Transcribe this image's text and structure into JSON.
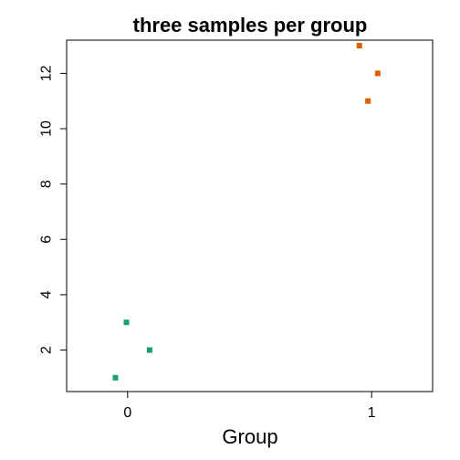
{
  "chart_data": {
    "type": "scatter",
    "title": "three samples per group",
    "xlabel": "Group",
    "ylabel": "",
    "xlim": [
      -0.25,
      1.25
    ],
    "ylim": [
      0.5,
      13.2
    ],
    "x_ticks": [
      0,
      1
    ],
    "x_tick_labels": [
      "0",
      "1"
    ],
    "y_ticks": [
      2,
      4,
      6,
      8,
      10,
      12
    ],
    "y_tick_labels": [
      "2",
      "4",
      "6",
      "8",
      "10",
      "12"
    ],
    "grid": false,
    "legend": "none",
    "series": [
      {
        "color": "#1b9e77",
        "points": [
          {
            "x": -0.05,
            "y": 1
          },
          {
            "x": 0.09,
            "y": 2
          },
          {
            "x": -0.005,
            "y": 3
          }
        ]
      },
      {
        "color": "#d95f02",
        "points": [
          {
            "x": 0.985,
            "y": 11
          },
          {
            "x": 1.025,
            "y": 12
          },
          {
            "x": 0.95,
            "y": 13
          }
        ]
      }
    ]
  }
}
